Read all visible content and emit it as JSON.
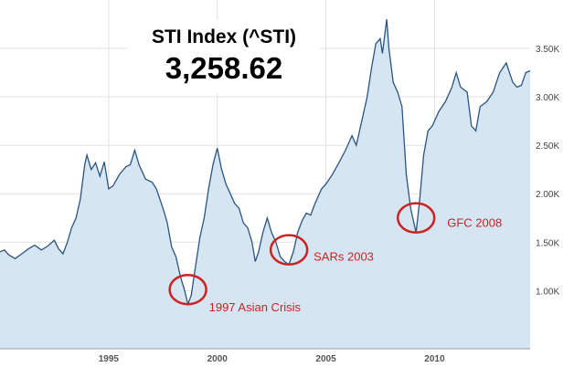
{
  "chart_data": {
    "type": "area",
    "title": "STI Index (^STI)",
    "current_value": "3,258.62",
    "x_range": [
      1990.0,
      2014.4
    ],
    "y_range": [
      0.4,
      4.0
    ],
    "y_unit": "K",
    "y_ticks": [
      {
        "value": 1.0,
        "label": "1.00K"
      },
      {
        "value": 1.5,
        "label": "1.50K"
      },
      {
        "value": 2.0,
        "label": "2.00K"
      },
      {
        "value": 2.5,
        "label": "2.50K"
      },
      {
        "value": 3.0,
        "label": "3.00K"
      },
      {
        "value": 3.5,
        "label": "3.50K"
      }
    ],
    "x_ticks": [
      {
        "value": 1995,
        "label": "1995"
      },
      {
        "value": 2000,
        "label": "2000"
      },
      {
        "value": 2005,
        "label": "2005"
      },
      {
        "value": 2010,
        "label": "2010"
      }
    ],
    "grid": true,
    "colors": {
      "line": "#2a5580",
      "fill": "#d5e5f1",
      "grid": "#e0e0e0",
      "annotation": "#cc2222"
    },
    "series": [
      {
        "points": [
          [
            1990.0,
            1.4
          ],
          [
            1990.2,
            1.42
          ],
          [
            1990.4,
            1.37
          ],
          [
            1990.7,
            1.33
          ],
          [
            1991.0,
            1.38
          ],
          [
            1991.3,
            1.43
          ],
          [
            1991.6,
            1.47
          ],
          [
            1991.9,
            1.42
          ],
          [
            1992.2,
            1.46
          ],
          [
            1992.5,
            1.52
          ],
          [
            1992.7,
            1.43
          ],
          [
            1992.9,
            1.38
          ],
          [
            1993.1,
            1.5
          ],
          [
            1993.3,
            1.65
          ],
          [
            1993.5,
            1.75
          ],
          [
            1993.7,
            1.95
          ],
          [
            1993.9,
            2.3
          ],
          [
            1994.0,
            2.4
          ],
          [
            1994.2,
            2.25
          ],
          [
            1994.4,
            2.32
          ],
          [
            1994.6,
            2.18
          ],
          [
            1994.8,
            2.33
          ],
          [
            1995.0,
            2.05
          ],
          [
            1995.2,
            2.08
          ],
          [
            1995.5,
            2.2
          ],
          [
            1995.8,
            2.28
          ],
          [
            1996.0,
            2.3
          ],
          [
            1996.2,
            2.45
          ],
          [
            1996.4,
            2.3
          ],
          [
            1996.7,
            2.15
          ],
          [
            1997.0,
            2.12
          ],
          [
            1997.2,
            2.05
          ],
          [
            1997.5,
            1.85
          ],
          [
            1997.7,
            1.7
          ],
          [
            1997.9,
            1.45
          ],
          [
            1998.1,
            1.35
          ],
          [
            1998.3,
            1.15
          ],
          [
            1998.5,
            1.0
          ],
          [
            1998.65,
            0.86
          ],
          [
            1998.8,
            0.95
          ],
          [
            1999.0,
            1.25
          ],
          [
            1999.2,
            1.55
          ],
          [
            1999.4,
            1.75
          ],
          [
            1999.6,
            2.05
          ],
          [
            1999.8,
            2.3
          ],
          [
            2000.0,
            2.47
          ],
          [
            2000.2,
            2.25
          ],
          [
            2000.4,
            2.1
          ],
          [
            2000.6,
            2.0
          ],
          [
            2000.8,
            1.9
          ],
          [
            2001.0,
            1.85
          ],
          [
            2001.2,
            1.7
          ],
          [
            2001.4,
            1.65
          ],
          [
            2001.6,
            1.5
          ],
          [
            2001.75,
            1.3
          ],
          [
            2001.9,
            1.4
          ],
          [
            2002.1,
            1.6
          ],
          [
            2002.3,
            1.75
          ],
          [
            2002.5,
            1.6
          ],
          [
            2002.7,
            1.5
          ],
          [
            2002.9,
            1.35
          ],
          [
            2003.1,
            1.3
          ],
          [
            2003.3,
            1.27
          ],
          [
            2003.5,
            1.4
          ],
          [
            2003.7,
            1.6
          ],
          [
            2003.9,
            1.72
          ],
          [
            2004.1,
            1.8
          ],
          [
            2004.3,
            1.78
          ],
          [
            2004.5,
            1.9
          ],
          [
            2004.8,
            2.05
          ],
          [
            2005.0,
            2.1
          ],
          [
            2005.3,
            2.2
          ],
          [
            2005.6,
            2.32
          ],
          [
            2005.9,
            2.45
          ],
          [
            2006.2,
            2.6
          ],
          [
            2006.4,
            2.5
          ],
          [
            2006.6,
            2.7
          ],
          [
            2006.9,
            3.0
          ],
          [
            2007.1,
            3.3
          ],
          [
            2007.3,
            3.55
          ],
          [
            2007.5,
            3.6
          ],
          [
            2007.6,
            3.45
          ],
          [
            2007.8,
            3.8
          ],
          [
            2007.9,
            3.5
          ],
          [
            2008.1,
            3.15
          ],
          [
            2008.3,
            3.05
          ],
          [
            2008.5,
            2.9
          ],
          [
            2008.7,
            2.2
          ],
          [
            2008.9,
            1.85
          ],
          [
            2009.05,
            1.7
          ],
          [
            2009.15,
            1.6
          ],
          [
            2009.3,
            1.9
          ],
          [
            2009.5,
            2.4
          ],
          [
            2009.7,
            2.65
          ],
          [
            2009.9,
            2.7
          ],
          [
            2010.2,
            2.85
          ],
          [
            2010.5,
            2.95
          ],
          [
            2010.8,
            3.1
          ],
          [
            2011.0,
            3.25
          ],
          [
            2011.2,
            3.1
          ],
          [
            2011.5,
            3.05
          ],
          [
            2011.7,
            2.7
          ],
          [
            2011.9,
            2.65
          ],
          [
            2012.1,
            2.9
          ],
          [
            2012.4,
            2.95
          ],
          [
            2012.7,
            3.05
          ],
          [
            2013.0,
            3.25
          ],
          [
            2013.3,
            3.35
          ],
          [
            2013.6,
            3.15
          ],
          [
            2013.8,
            3.1
          ],
          [
            2014.0,
            3.12
          ],
          [
            2014.2,
            3.25
          ],
          [
            2014.4,
            3.27
          ]
        ]
      }
    ],
    "annotations": [
      {
        "label": "1997 Asian Crisis",
        "x": 1998.65,
        "y": 0.86
      },
      {
        "label": "SARs 2003",
        "x": 2003.3,
        "y": 1.27
      },
      {
        "label": "GFC 2008",
        "x": 2009.15,
        "y": 1.6
      }
    ]
  }
}
